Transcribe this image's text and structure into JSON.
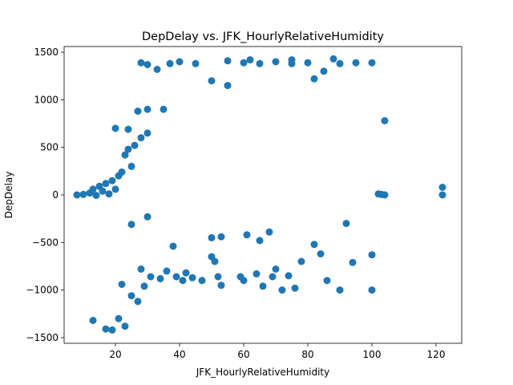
{
  "chart_data": {
    "type": "scatter",
    "title": "DepDelay vs. JFK_HourlyRelativeHumidity",
    "xlabel": "JFK_HourlyRelativeHumidity",
    "ylabel": "DepDelay",
    "xlim": [
      4,
      128
    ],
    "ylim": [
      -1560,
      1560
    ],
    "xticks": [
      20,
      40,
      60,
      80,
      100,
      120
    ],
    "yticks": [
      -1500,
      -1000,
      -500,
      0,
      500,
      1000,
      1500
    ],
    "grid": false,
    "marker_color": "#1f77b4",
    "series": [
      {
        "points": [
          [
            8,
            0
          ],
          [
            10,
            5
          ],
          [
            12,
            20
          ],
          [
            13,
            60
          ],
          [
            14,
            -5
          ],
          [
            15,
            90
          ],
          [
            16,
            40
          ],
          [
            17,
            120
          ],
          [
            18,
            10
          ],
          [
            19,
            150
          ],
          [
            20,
            60
          ],
          [
            21,
            200
          ],
          [
            22,
            240
          ],
          [
            23,
            420
          ],
          [
            24,
            480
          ],
          [
            25,
            300
          ],
          [
            26,
            520
          ],
          [
            28,
            600
          ],
          [
            30,
            650
          ],
          [
            20,
            700
          ],
          [
            24,
            690
          ],
          [
            27,
            880
          ],
          [
            30,
            900
          ],
          [
            28,
            1390
          ],
          [
            30,
            1370
          ],
          [
            33,
            1320
          ],
          [
            35,
            900
          ],
          [
            25,
            -310
          ],
          [
            30,
            -230
          ],
          [
            38,
            -540
          ],
          [
            13,
            -1320
          ],
          [
            17,
            -1410
          ],
          [
            19,
            -1420
          ],
          [
            21,
            -1300
          ],
          [
            22,
            -940
          ],
          [
            23,
            -1380
          ],
          [
            25,
            -1060
          ],
          [
            27,
            -1120
          ],
          [
            28,
            -780
          ],
          [
            29,
            -960
          ],
          [
            31,
            -860
          ],
          [
            34,
            -880
          ],
          [
            36,
            -800
          ],
          [
            39,
            -860
          ],
          [
            41,
            -900
          ],
          [
            42,
            -820
          ],
          [
            44,
            -870
          ],
          [
            47,
            -900
          ],
          [
            50,
            -650
          ],
          [
            51,
            -700
          ],
          [
            52,
            -860
          ],
          [
            53,
            -950
          ],
          [
            50,
            -450
          ],
          [
            53,
            -440
          ],
          [
            61,
            -420
          ],
          [
            65,
            -480
          ],
          [
            68,
            -390
          ],
          [
            59,
            -860
          ],
          [
            60,
            -900
          ],
          [
            64,
            -830
          ],
          [
            66,
            -960
          ],
          [
            69,
            -860
          ],
          [
            70,
            -780
          ],
          [
            72,
            -1000
          ],
          [
            74,
            -850
          ],
          [
            76,
            -980
          ],
          [
            78,
            -700
          ],
          [
            82,
            -520
          ],
          [
            84,
            -620
          ],
          [
            86,
            -900
          ],
          [
            90,
            -1000
          ],
          [
            92,
            -300
          ],
          [
            94,
            -710
          ],
          [
            100,
            -630
          ],
          [
            100,
            -1000
          ],
          [
            37,
            1380
          ],
          [
            40,
            1400
          ],
          [
            45,
            1380
          ],
          [
            50,
            1200
          ],
          [
            55,
            1150
          ],
          [
            60,
            1390
          ],
          [
            65,
            1380
          ],
          [
            70,
            1400
          ],
          [
            75,
            1380
          ],
          [
            80,
            1390
          ],
          [
            82,
            1220
          ],
          [
            85,
            1300
          ],
          [
            90,
            1380
          ],
          [
            95,
            1390
          ],
          [
            100,
            1390
          ],
          [
            55,
            1410
          ],
          [
            62,
            1420
          ],
          [
            75,
            1420
          ],
          [
            88,
            1430
          ],
          [
            104,
            0
          ],
          [
            102,
            10
          ],
          [
            103,
            5
          ],
          [
            104,
            780
          ],
          [
            122,
            0
          ],
          [
            122,
            80
          ]
        ]
      }
    ]
  }
}
